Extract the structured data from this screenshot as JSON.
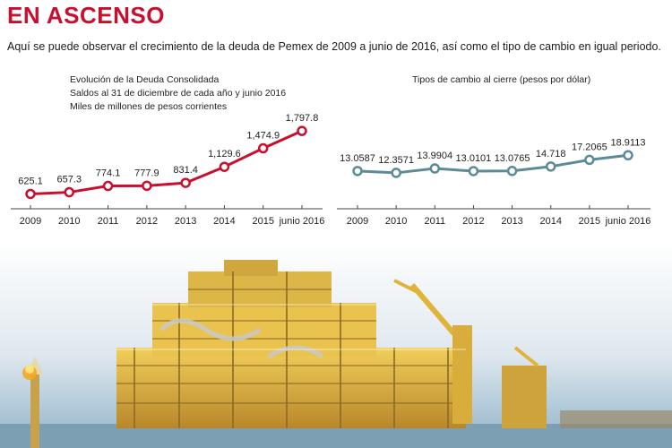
{
  "headline": "EN ASCENSO",
  "subtitle": "Aquí se puede observar el crecimiento de la deuda de Pemex de 2009 a junio de 2016, así como el tipo de cambio en igual periodo.",
  "chart_data": [
    {
      "type": "line",
      "title": "Evolución de la Deuda Consolidada",
      "subtitle_lines": [
        "Saldos al 31 de diciembre de cada año y junio 2016",
        "Miles de millones de pesos corrientes"
      ],
      "categories": [
        "2009",
        "2010",
        "2011",
        "2012",
        "2013",
        "2014",
        "2015",
        "junio 2016"
      ],
      "values": [
        625.1,
        657.3,
        774.1,
        777.9,
        831.4,
        1129.6,
        1474.9,
        1797.8
      ],
      "labels": [
        "625.1",
        "657.3",
        "774.1",
        "777.9",
        "831.4",
        "1,129.6",
        "1,474.9",
        "1,797.8"
      ],
      "ylim": [
        400,
        1900
      ],
      "grid": false,
      "color": "#c8102e"
    },
    {
      "type": "line",
      "title": "Tipos de cambio al cierre (pesos por dólar)",
      "subtitle_lines": [],
      "categories": [
        "2009",
        "2010",
        "2011",
        "2012",
        "2013",
        "2014",
        "2015",
        "junio 2016"
      ],
      "values": [
        13.0587,
        12.3571,
        13.9904,
        13.0101,
        13.0765,
        14.718,
        17.2065,
        18.9113
      ],
      "labels": [
        "13.0587",
        "12.3571",
        "13.9904",
        "13.0101",
        "13.0765",
        "14.718",
        "17.2065",
        "18.9113"
      ],
      "ylim": [
        0,
        30
      ],
      "grid": false,
      "color": "#5b8b96"
    }
  ],
  "photo": {
    "description_icon": "offshore-oil-platform-photo"
  }
}
